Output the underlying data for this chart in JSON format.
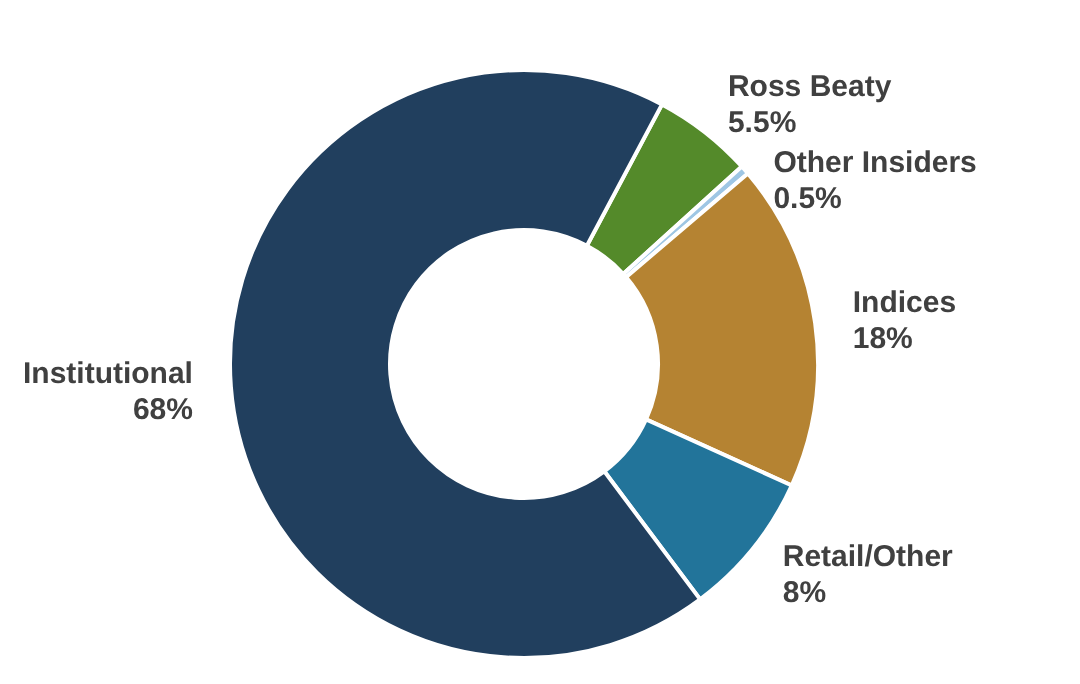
{
  "chart_data": {
    "type": "donut",
    "categories": [
      "Ross Beaty",
      "Other Insiders",
      "Indices",
      "Retail/Other",
      "Institutional"
    ],
    "values": [
      5.5,
      0.5,
      18,
      8,
      68
    ],
    "value_labels": [
      "5.5%",
      "0.5%",
      "18%",
      "8%",
      "68%"
    ],
    "colors": [
      "#548a2a",
      "#9ec6e4",
      "#b58332",
      "#22749a",
      "#213f5e"
    ]
  }
}
